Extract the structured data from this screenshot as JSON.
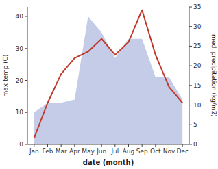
{
  "chart_data": {
    "type": "line",
    "xlabel": "date (month)",
    "ylabel": "max temp (C)",
    "y2label": "med. precipitation (kg/m2)",
    "categories": [
      "Jan",
      "Feb",
      "Mar",
      "Apr",
      "May",
      "Jun",
      "Jul",
      "Aug",
      "Sep",
      "Oct",
      "Nov",
      "Dec"
    ],
    "series": [
      {
        "type": "area",
        "color": "#c5cce8",
        "values": [
          10,
          13,
          13,
          14,
          40,
          35,
          27,
          33,
          33,
          21,
          21,
          14
        ]
      },
      {
        "type": "line",
        "color": "#c0392b",
        "values": [
          2,
          13,
          22,
          27,
          29,
          33,
          28,
          32,
          42,
          28,
          18,
          13
        ]
      }
    ],
    "ylim": [
      0,
      43
    ],
    "yticks": [
      0,
      10,
      20,
      30,
      40
    ],
    "y2lim": [
      0,
      35
    ],
    "y2ticks": [
      0,
      5,
      10,
      15,
      20,
      25,
      30,
      35
    ]
  }
}
